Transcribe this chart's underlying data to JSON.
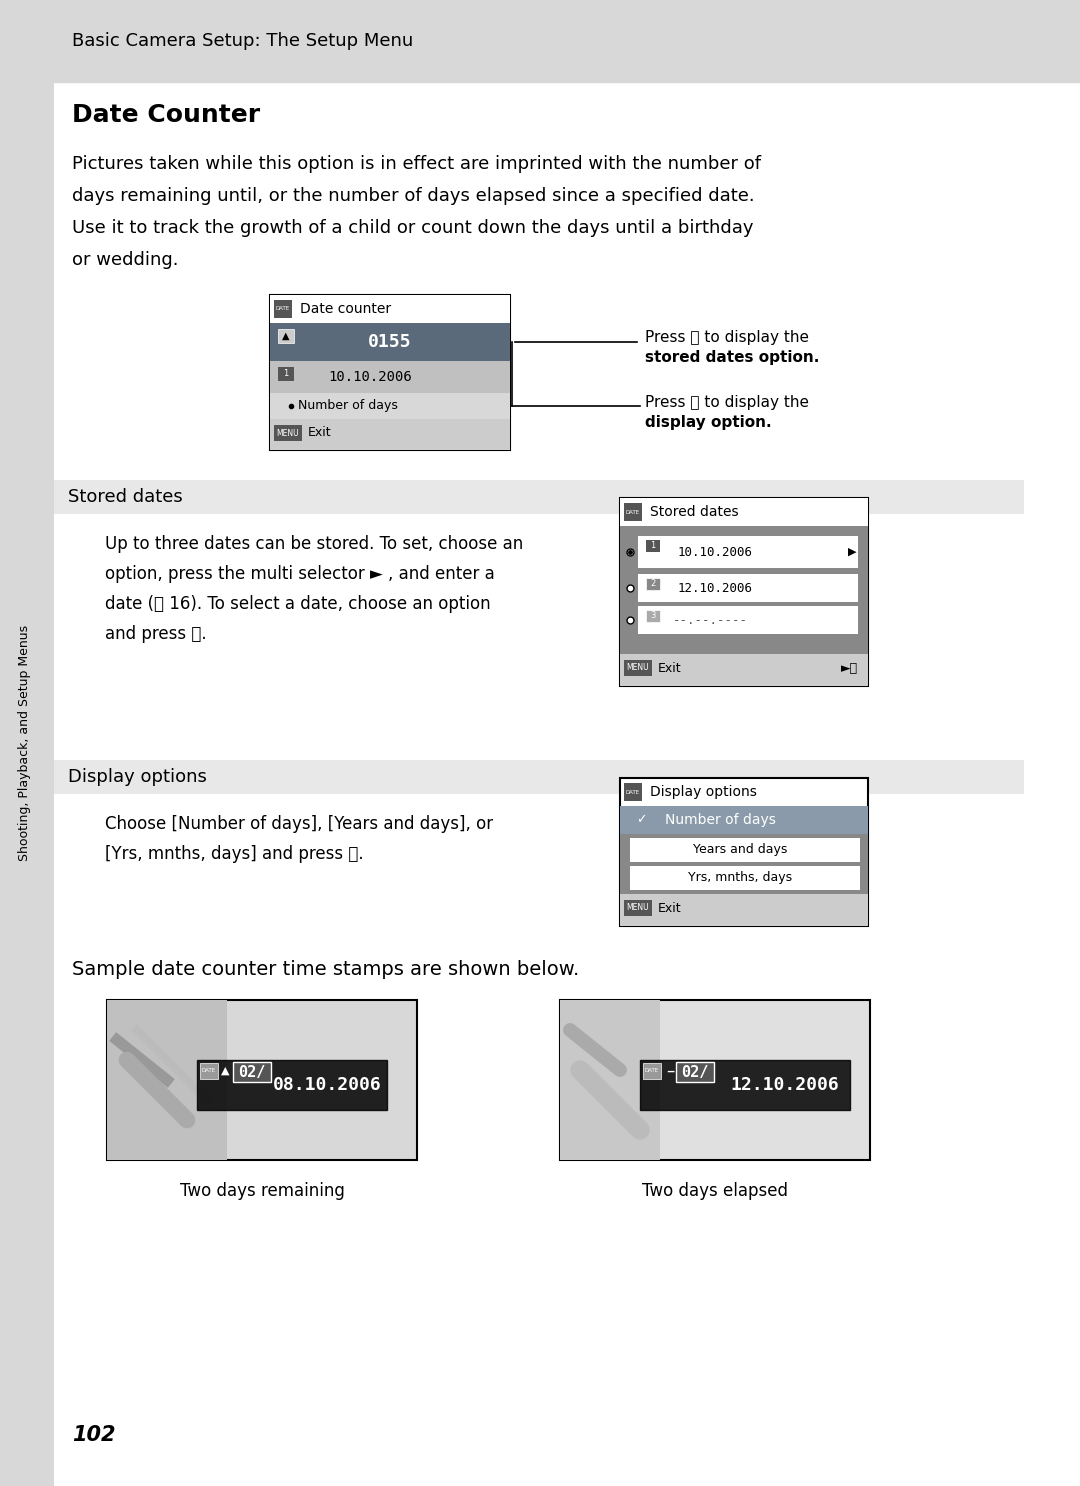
{
  "bg_color": "#ffffff",
  "header_bg": "#d8d8d8",
  "header_text": "Basic Camera Setup: The Setup Menu",
  "section_title": "Date Counter",
  "body_text1": "Pictures taken while this option is in effect are imprinted with the number of\ndays remaining until, or the number of days elapsed since a specified date.\nUse it to track the growth of a child or count down the days until a birthday\nor wedding.",
  "stored_dates_header": "Stored dates",
  "stored_dates_body": "Up to three dates can be stored. To set, choose an\noption, press the multi selector ► , and enter a\ndate (ⓧ 16). To select a date, choose an option\nand press ⓞ.",
  "display_options_header": "Display options",
  "display_options_body": "Choose [Number of days], [Years and days], or\n[Yrs, mnths, days] and press ⓞ.",
  "sample_text": "Sample date counter time stamps are shown below.",
  "stamp1_label": "Two days remaining",
  "stamp2_label": "Two days elapsed",
  "page_number": "102",
  "sidebar_text": "Shooting, Playback, and Setup Menus",
  "section_bg": "#e8e8e8",
  "menu_bg": "#888888",
  "menu_item_bg": "#aaaaaa",
  "selected_bg": "#5a6a7a",
  "white": "#ffffff",
  "black": "#000000",
  "dark_gray": "#555555",
  "light_gray": "#cccccc",
  "medium_gray": "#999999"
}
